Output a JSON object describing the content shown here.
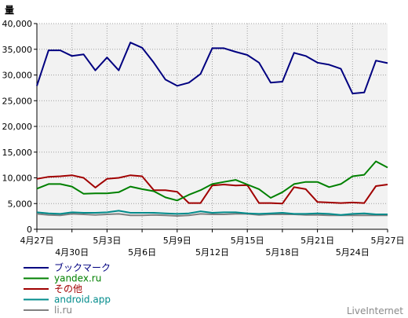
{
  "chart_data": {
    "type": "line",
    "ylabel": "量",
    "ylim": [
      0,
      40000
    ],
    "yticks": [
      "0",
      "5,000",
      "10,000",
      "15,000",
      "20,000",
      "25,000",
      "30,000",
      "35,000",
      "40,000"
    ],
    "ytick_values": [
      0,
      5000,
      10000,
      15000,
      20000,
      25000,
      30000,
      35000,
      40000
    ],
    "x": [
      "4月27日",
      "4月28日",
      "4月29日",
      "4月30日",
      "5月1日",
      "5月2日",
      "5月3日",
      "5月4日",
      "5月5日",
      "5月6日",
      "5月7日",
      "5月8日",
      "5月9日",
      "5月10日",
      "5月11日",
      "5月12日",
      "5月13日",
      "5月14日",
      "5月15日",
      "5月16日",
      "5月17日",
      "5月18日",
      "5月19日",
      "5月20日",
      "5月21日",
      "5月22日",
      "5月23日",
      "5月24日",
      "5月25日",
      "5月26日",
      "5月27日"
    ],
    "xtick_labels": [
      {
        "label": "4月27日",
        "index": 0,
        "row": 1
      },
      {
        "label": "4月30日",
        "index": 3,
        "row": 2
      },
      {
        "label": "5月3日",
        "index": 6,
        "row": 1
      },
      {
        "label": "5月6日",
        "index": 9,
        "row": 2
      },
      {
        "label": "5月9日",
        "index": 12,
        "row": 1
      },
      {
        "label": "5月12日",
        "index": 15,
        "row": 2
      },
      {
        "label": "5月15日",
        "index": 18,
        "row": 1
      },
      {
        "label": "5月18日",
        "index": 21,
        "row": 2
      },
      {
        "label": "5月21日",
        "index": 24,
        "row": 1
      },
      {
        "label": "5月24日",
        "index": 27,
        "row": 2
      },
      {
        "label": "5月27日",
        "index": 30,
        "row": 1
      }
    ],
    "grid": true,
    "legend_position": "bottom-left",
    "series": [
      {
        "name": "ブックマーク",
        "color": "#000080",
        "values": [
          27900,
          34800,
          34800,
          33700,
          34000,
          30900,
          33400,
          30900,
          36300,
          35300,
          32400,
          29100,
          27900,
          28500,
          30200,
          35200,
          35200,
          34500,
          33900,
          32400,
          28500,
          28700,
          34300,
          33700,
          32400,
          32000,
          31200,
          26400,
          26600,
          32800,
          32300
        ]
      },
      {
        "name": "yandex.ru",
        "color": "#008000",
        "values": [
          7900,
          8800,
          8800,
          8300,
          6900,
          7000,
          7000,
          7200,
          8300,
          7800,
          7400,
          6200,
          5600,
          6700,
          7600,
          8800,
          9200,
          9600,
          8700,
          7800,
          6100,
          7200,
          8800,
          9200,
          9200,
          8200,
          8800,
          10300,
          10600,
          13200,
          12000
        ]
      },
      {
        "name": "その他",
        "color": "#a00000",
        "values": [
          9800,
          10200,
          10300,
          10500,
          10000,
          8100,
          9800,
          10000,
          10500,
          10300,
          7600,
          7600,
          7300,
          5100,
          5100,
          8500,
          8700,
          8500,
          8600,
          5100,
          5100,
          5000,
          8200,
          7800,
          5300,
          5200,
          5100,
          5200,
          5100,
          8400,
          8700
        ]
      },
      {
        "name": "android.app",
        "color": "#008b8b",
        "values": [
          3300,
          3100,
          3000,
          3300,
          3200,
          3200,
          3300,
          3600,
          3200,
          3200,
          3200,
          3100,
          3000,
          3100,
          3500,
          3200,
          3300,
          3300,
          3100,
          3000,
          3100,
          3200,
          3000,
          3000,
          3100,
          3000,
          2800,
          3000,
          3100,
          2900,
          2900
        ]
      },
      {
        "name": "li.ru",
        "color": "#808080",
        "values": [
          3000,
          2800,
          2700,
          3000,
          2900,
          2800,
          2900,
          3000,
          2700,
          2700,
          2800,
          2700,
          2600,
          2700,
          3000,
          2900,
          2900,
          3000,
          3000,
          2800,
          2900,
          2900,
          2900,
          2800,
          2800,
          2700,
          2700,
          2700,
          2700,
          2700,
          2700
        ]
      }
    ]
  },
  "brand": "LiveInternet"
}
